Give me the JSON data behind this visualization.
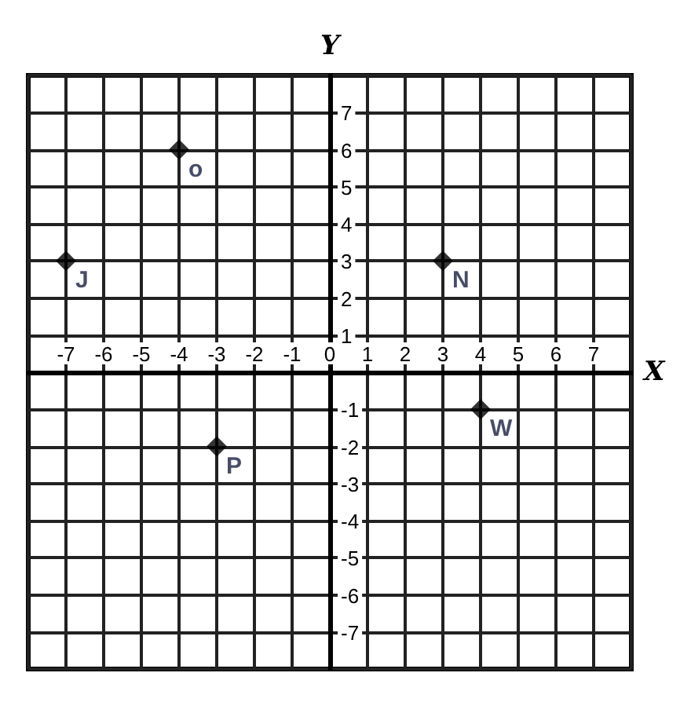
{
  "chart_data": {
    "type": "scatter",
    "xlabel": "X",
    "ylabel": "Y",
    "x": [
      -7,
      -4,
      3,
      -3,
      4
    ],
    "values": [
      3,
      6,
      3,
      -2,
      -1
    ],
    "color": "#000000",
    "marker": "diamond",
    "grid": true,
    "xlim": [
      -8,
      8
    ],
    "ylim": [
      -8,
      8
    ],
    "xticks": [
      {
        "value": -8,
        "label": null
      },
      -7,
      -6,
      -5,
      -4,
      -3,
      -2,
      -1,
      0,
      1,
      2,
      3,
      4,
      5,
      6,
      7,
      {
        "value": 8,
        "label": null
      }
    ],
    "yticks": [
      {
        "value": -8,
        "label": null
      },
      -7,
      -6,
      -5,
      -4,
      -3,
      -2,
      -1,
      {
        "value": 0,
        "label": null
      },
      1,
      2,
      3,
      4,
      5,
      6,
      7,
      {
        "value": 8,
        "label": null
      }
    ],
    "annotations": [
      {
        "text": "J",
        "x": -7,
        "y": 3
      },
      {
        "text": "o",
        "x": -4,
        "y": 6
      },
      {
        "text": "N",
        "x": 3,
        "y": 3
      },
      {
        "text": "P",
        "x": -3,
        "y": -2
      },
      {
        "text": "W",
        "x": 4,
        "y": -1
      }
    ]
  }
}
